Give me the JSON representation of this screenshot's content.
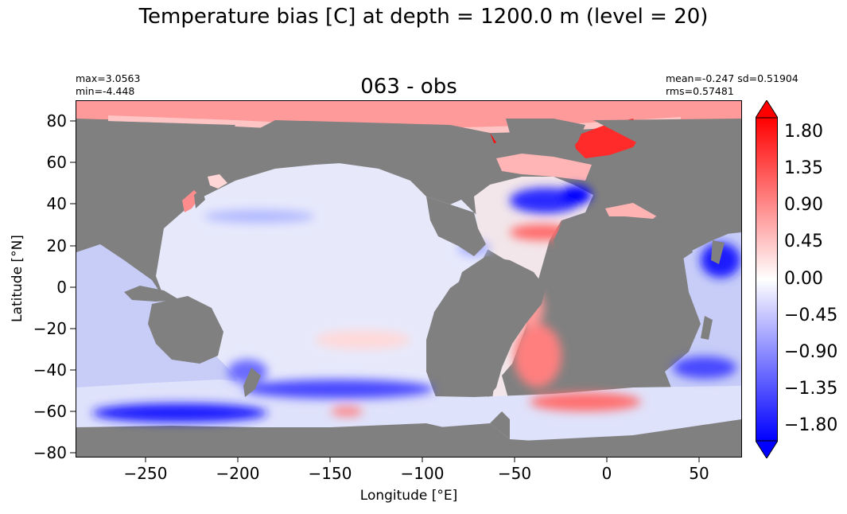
{
  "figure": {
    "suptitle": "Temperature bias [C] at depth = 1200.0 m (level = 20)",
    "axes_title": "063 - obs",
    "stats_left": [
      "max=3.0563",
      "min=-4.448"
    ],
    "stats_right": [
      "mean=-0.247 sd=0.51904",
      "rms=0.57481"
    ],
    "xlabel": "Longitude [°E]",
    "ylabel": "Latitude [°N]",
    "xticks": [
      "−250",
      "−200",
      "−150",
      "−100",
      "−50",
      "0",
      "50"
    ],
    "yticks": [
      "80",
      "60",
      "40",
      "20",
      "0",
      "−20",
      "−40",
      "−60",
      "−80"
    ],
    "colorbar_ticks": [
      "1.80",
      "1.35",
      "0.90",
      "0.45",
      "0.00",
      "−0.45",
      "−0.90",
      "−1.35",
      "−1.80"
    ]
  },
  "chart_data": {
    "type": "heatmap",
    "title": "063 - obs",
    "variable": "Temperature bias [C]",
    "depth_m": 1200.0,
    "level": 20,
    "xlim": [
      -288,
      72
    ],
    "ylim": [
      -82,
      90
    ],
    "x_ticks": [
      -250,
      -200,
      -150,
      -100,
      -50,
      0,
      50
    ],
    "y_ticks": [
      80,
      60,
      40,
      20,
      0,
      -20,
      -40,
      -60,
      -80
    ],
    "color_range": [
      -2.0,
      2.0
    ],
    "colorbar_ticks": [
      1.8,
      1.35,
      0.9,
      0.45,
      0.0,
      -0.45,
      -0.9,
      -1.35,
      -1.8
    ],
    "colormap": "bwr",
    "colors": {
      "land": "#808080",
      "negative": "#0000ff",
      "neutral": "#ffffff",
      "positive": "#ff0000"
    },
    "stats": {
      "max": 3.0563,
      "min": -4.448,
      "mean": -0.247,
      "sd": 0.51904,
      "rms": 0.57481
    }
  }
}
